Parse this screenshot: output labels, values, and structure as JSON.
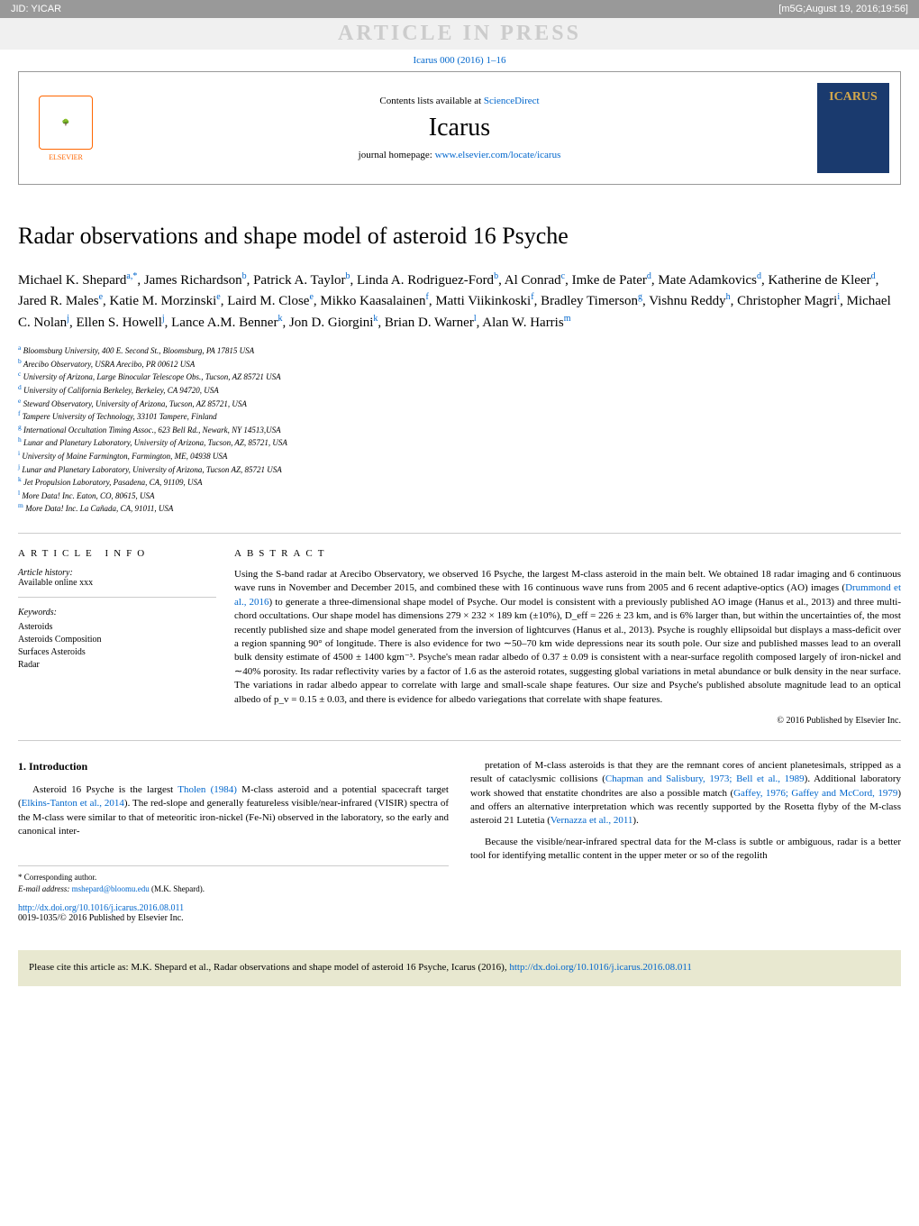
{
  "topbar": {
    "jid": "JID: YICAR",
    "meta": "[m5G;August 19, 2016;19:56]"
  },
  "press_banner": "ARTICLE IN PRESS",
  "journal_ref": {
    "text": "Icarus 000 (2016) 1–16",
    "href": "#"
  },
  "header": {
    "contents": "Contents lists available at ",
    "sciencedirect": "ScienceDirect",
    "journal_name": "Icarus",
    "homepage_label": "journal homepage: ",
    "homepage_url": "www.elsevier.com/locate/icarus",
    "elsevier": "ELSEVIER",
    "cover_title": "ICARUS"
  },
  "title": "Radar observations and shape model of asteroid 16 Psyche",
  "authors_html": "Michael K. Shepard<sup>a,*</sup>, James Richardson<sup>b</sup>, Patrick A. Taylor<sup>b</sup>, Linda A. Rodriguez-Ford<sup>b</sup>, Al Conrad<sup>c</sup>, Imke de Pater<sup>d</sup>, Mate Adamkovics<sup>d</sup>, Katherine de Kleer<sup>d</sup>, Jared R. Males<sup>e</sup>, Katie M. Morzinski<sup>e</sup>, Laird M. Close<sup>e</sup>, Mikko Kaasalainen<sup>f</sup>, Matti Viikinkoski<sup>f</sup>, Bradley Timerson<sup>g</sup>, Vishnu Reddy<sup>h</sup>, Christopher Magri<sup>i</sup>, Michael C. Nolan<sup>j</sup>, Ellen S. Howell<sup>j</sup>, Lance A.M. Benner<sup>k</sup>, Jon D. Giorgini<sup>k</sup>, Brian D. Warner<sup>l</sup>, Alan W. Harris<sup>m</sup>",
  "affiliations": [
    "a Bloomsburg University, 400 E. Second St., Bloomsburg, PA 17815 USA",
    "b Arecibo Observatory, USRA Arecibo, PR 00612 USA",
    "c University of Arizona, Large Binocular Telescope Obs., Tucson, AZ 85721 USA",
    "d University of California Berkeley, Berkeley, CA 94720, USA",
    "e Steward Observatory, University of Arizona, Tucson, AZ 85721, USA",
    "f Tampere University of Technology, 33101 Tampere, Finland",
    "g International Occultation Timing Assoc., 623 Bell Rd., Newark, NY 14513,USA",
    "h Lunar and Planetary Laboratory, University of Arizona, Tucson, AZ, 85721, USA",
    "i University of Maine Farmington, Farmington, ME, 04938 USA",
    "j Lunar and Planetary Laboratory, University of Arizona, Tucson AZ, 85721 USA",
    "k Jet Propulsion Laboratory, Pasadena, CA, 91109, USA",
    "l More Data! Inc. Eaton, CO, 80615, USA",
    "m More Data! Inc. La Cañada, CA, 91011, USA"
  ],
  "article_info": {
    "label": "ARTICLE INFO",
    "history_label": "Article history:",
    "history": "Available online xxx",
    "keywords_label": "Keywords:",
    "keywords": [
      "Asteroids",
      "Asteroids Composition",
      "Surfaces Asteroids",
      "Radar"
    ]
  },
  "abstract": {
    "label": "ABSTRACT",
    "text": "Using the S-band radar at Arecibo Observatory, we observed 16 Psyche, the largest M-class asteroid in the main belt. We obtained 18 radar imaging and 6 continuous wave runs in November and December 2015, and combined these with 16 continuous wave runs from 2005 and 6 recent adaptive-optics (AO) images (Drummond et al., 2016) to generate a three-dimensional shape model of Psyche. Our model is consistent with a previously published AO image (Hanus et al., 2013) and three multi-chord occultations. Our shape model has dimensions 279 × 232 × 189 km (±10%), D_eff = 226 ± 23 km, and is 6% larger than, but within the uncertainties of, the most recently published size and shape model generated from the inversion of lightcurves (Hanus et al., 2013). Psyche is roughly ellipsoidal but displays a mass-deficit over a region spanning 90° of longitude. There is also evidence for two ∼50–70 km wide depressions near its south pole. Our size and published masses lead to an overall bulk density estimate of 4500 ± 1400 kgm⁻³. Psyche's mean radar albedo of 0.37 ± 0.09 is consistent with a near-surface regolith composed largely of iron-nickel and ∼40% porosity. Its radar reflectivity varies by a factor of 1.6 as the asteroid rotates, suggesting global variations in metal abundance or bulk density in the near surface. The variations in radar albedo appear to correlate with large and small-scale shape features. Our size and Psyche's published absolute magnitude lead to an optical albedo of p_v = 0.15 ± 0.03, and there is evidence for albedo variegations that correlate with shape features.",
    "copyright": "© 2016 Published by Elsevier Inc."
  },
  "body": {
    "intro_heading": "1. Introduction",
    "col1_p1": "Asteroid 16 Psyche is the largest Tholen (1984) M-class asteroid and a potential spacecraft target (Elkins-Tanton et al., 2014). The red-slope and generally featureless visible/near-infrared (VISIR) spectra of the M-class were similar to that of meteoritic iron-nickel (Fe-Ni) observed in the laboratory, so the early and canonical inter-",
    "col2_p1": "pretation of M-class asteroids is that they are the remnant cores of ancient planetesimals, stripped as a result of cataclysmic collisions (Chapman and Salisbury, 1973; Bell et al., 1989). Additional laboratory work showed that enstatite chondrites are also a possible match (Gaffey, 1976; Gaffey and McCord, 1979) and offers an alternative interpretation which was recently supported by the Rosetta flyby of the M-class asteroid 21 Lutetia (Vernazza et al., 2011).",
    "col2_p2": "Because the visible/near-infrared spectral data for the M-class is subtle or ambiguous, radar is a better tool for identifying metallic content in the upper meter or so of the regolith"
  },
  "footnote": {
    "corresponding": "* Corresponding author.",
    "email_label": "E-mail address: ",
    "email": "mshepard@bloomu.edu",
    "email_suffix": " (M.K. Shepard)."
  },
  "doi": {
    "url": "http://dx.doi.org/10.1016/j.icarus.2016.08.011",
    "issn": "0019-1035/© 2016 Published by Elsevier Inc."
  },
  "cite": {
    "text": "Please cite this article as: M.K. Shepard et al., Radar observations and shape model of asteroid 16 Psyche, Icarus (2016), ",
    "url": "http://dx.doi.org/10.1016/j.icarus.2016.08.011"
  },
  "colors": {
    "link": "#0066cc",
    "topbar_bg": "#999999",
    "citebox_bg": "#e8e8d0",
    "cover_bg": "#1a3a6e",
    "cover_title": "#d4a84b",
    "elsevier": "#ff6600"
  }
}
